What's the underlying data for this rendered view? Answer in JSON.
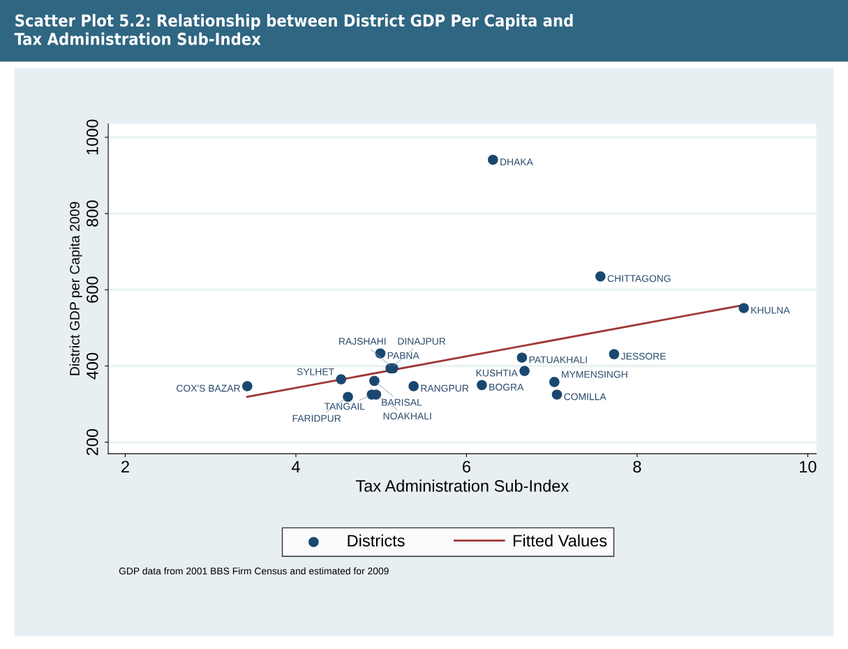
{
  "chart_data": {
    "type": "scatter",
    "title": "Scatter Plot 5.2: Relationship between District GDP Per Capita and\nTax Administration Sub-Index",
    "xlabel": "Tax Administration Sub-Index",
    "ylabel": "District GDP per Capita 2009",
    "xlim": [
      1.8,
      10.1
    ],
    "ylim": [
      170,
      1035
    ],
    "xticks": [
      2,
      4,
      6,
      8,
      10
    ],
    "yticks": [
      200,
      400,
      600,
      800,
      1000
    ],
    "grid": "y",
    "legend": "bottom",
    "marker": "circle",
    "series": [
      {
        "name": "Districts",
        "color": "#1a476f",
        "x": [
          6.31,
          7.57,
          9.25,
          7.73,
          6.65,
          6.68,
          7.03,
          7.06,
          6.18,
          5.38,
          4.99,
          5.11,
          5.14,
          4.53,
          4.92,
          4.89,
          4.94,
          4.61,
          3.43
        ],
        "values": [
          941,
          635,
          552,
          431,
          422,
          387,
          358,
          325,
          350,
          347,
          433,
          394,
          394,
          365,
          361,
          325,
          325,
          319,
          347
        ]
      },
      {
        "name": "Fitted Values",
        "type": "line",
        "color": "#a03636",
        "marker": "none",
        "line_style": "solid",
        "x": [
          3.43,
          9.25
        ],
        "values": [
          319,
          560
        ]
      }
    ],
    "annotations": [
      {
        "text": "DHAKA",
        "x": 6.31,
        "y": 941
      },
      {
        "text": "CHITTAGONG",
        "x": 7.57,
        "y": 635
      },
      {
        "text": "KHULNA",
        "x": 9.25,
        "y": 552
      },
      {
        "text": "JESSORE",
        "x": 7.73,
        "y": 431
      },
      {
        "text": "PATUAKHALI",
        "x": 6.65,
        "y": 422
      },
      {
        "text": "KUSHTIA",
        "x": 6.68,
        "y": 387
      },
      {
        "text": "MYMENSINGH",
        "x": 7.03,
        "y": 358
      },
      {
        "text": "COMILLA",
        "x": 7.06,
        "y": 325
      },
      {
        "text": "BOGRA",
        "x": 6.18,
        "y": 350
      },
      {
        "text": "RANGPUR",
        "x": 5.38,
        "y": 347
      },
      {
        "text": "PABNA",
        "x": 4.99,
        "y": 433
      },
      {
        "text": "DINAJPUR",
        "x": 5.11,
        "y": 394
      },
      {
        "text": "RAJSHAHI",
        "x": 5.14,
        "y": 394
      },
      {
        "text": "SYLHET",
        "x": 4.53,
        "y": 365
      },
      {
        "text": "BARISAL",
        "x": 4.92,
        "y": 361
      },
      {
        "text": "TANGAIL",
        "x": 4.89,
        "y": 325
      },
      {
        "text": "NOAKHALI",
        "x": 4.94,
        "y": 325
      },
      {
        "text": "FARIDPUR",
        "x": 4.61,
        "y": 319
      },
      {
        "text": "COX'S BAZAR",
        "x": 3.43,
        "y": 347
      },
      "GDP data from 2001 BBS Firm Census and estimated for 2009"
    ]
  }
}
